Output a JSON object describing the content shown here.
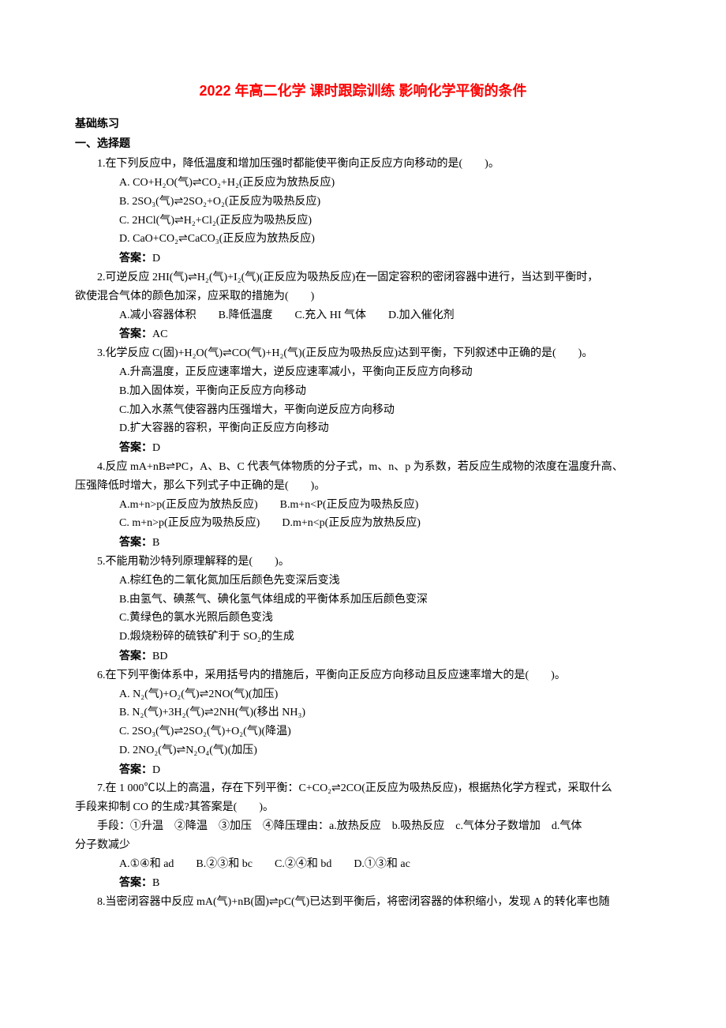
{
  "title": "2022 年高二化学 课时跟踪训练 影响化学平衡的条件",
  "section1": "基础练习",
  "section2": "一、选择题",
  "q1": {
    "stem": "1.在下列反应中，降低温度和增加压强时都能使平衡向正反应方向移动的是(　　)。",
    "A": "A. CO+H₂O(气)⇌CO₂+H₂(正反应为放热反应)",
    "B": "B. 2SO₃(气)⇌2SO₂+O₂(正反应为吸热反应)",
    "C": "C. 2HCl(气)⇌H₂+Cl₂(正反应为吸热反应)",
    "D": "D. CaO+CO₂⇌CaCO₃(正反应为放热反应)",
    "ans": "D"
  },
  "q2": {
    "stem1": "2.可逆反应 2HI(气)⇌H₂(气)+I₂(气)(正反应为吸热反应)在一固定容积的密闭容器中进行，当达到平衡时，",
    "stem2": "欲使混合气体的颜色加深，应采取的措施为(　　)",
    "opts": "A.减小容器体积　　B.降低温度　　C.充入 HI 气体　　D.加入催化剂",
    "ans": "AC"
  },
  "q3": {
    "stem": "3.化学反应 C(固)+H₂O(气)⇌CO(气)+H₂(气)(正反应为吸热反应)达到平衡，下列叙述中正确的是(　　)。",
    "A": "A.升高温度，正反应速率增大，逆反应速率减小，平衡向正反应方向移动",
    "B": "B.加入固体炭，平衡向正反应方向移动",
    "C": "C.加入水蒸气使容器内压强增大，平衡向逆反应方向移动",
    "D": "D.扩大容器的容积，平衡向正反应方向移动",
    "ans": "D"
  },
  "q4": {
    "stem1": "4.反应 mA+nB⇌PC，A、B、C 代表气体物质的分子式，m、n、p 为系数，若反应生成物的浓度在温度升高、",
    "stem2": "压强降低时增大，那么下列式子中正确的是(　　)。",
    "A": "A.m+n>p(正反应为放热反应)　　B.m+n<P(正反应为吸热反应)",
    "C": "C. m+n>p(正反应为吸热反应)　　D.m+n<p(正反应为放热反应)",
    "ans": "B"
  },
  "q5": {
    "stem": "5.不能用勒沙特列原理解释的是(　　)。",
    "A": "A.棕红色的二氧化氮加压后颜色先变深后变浅",
    "B": "B.由氢气、碘蒸气、碘化氢气体组成的平衡体系加压后颜色变深",
    "C": "C.黄绿色的氯水光照后颜色变浅",
    "D": "D.煅烧粉碎的硫铁矿利于 SO₂的生成",
    "ans": "BD"
  },
  "q6": {
    "stem": "6.在下列平衡体系中，采用括号内的措施后，平衡向正反应方向移动且反应速率增大的是(　　)。",
    "A": "A. N₂(气)+O₂(气)⇌2NO(气)(加压)",
    "B": "B. N₂(气)+3H₂(气)⇌2NH(气)(移出 NH₃)",
    "C": "C. 2SO₃(气)⇌2SO₂(气)+O₂(气)(降温)",
    "D": "D. 2NO₂(气)⇌N₂O₄(气)(加压)",
    "ans": "D"
  },
  "q7": {
    "stem1": "7.在 1 000℃以上的高温，存在下列平衡：C+CO₂⇌2CO(正反应为吸热反应)，根据热化学方程式，采取什么",
    "stem2": "手段来抑制 CO 的生成?其答案是(　　)。",
    "means1": "手段：①升温　②降温　③加压　④降压理由：a.放热反应　b.吸热反应　c.气体分子数增加　d.气体",
    "means2": "分子数减少",
    "opts": "A.①④和 ad　　B.②③和 bc　　C.②④和 bd　　D.①③和 ac",
    "ans": "B"
  },
  "q8": {
    "stem": "8.当密闭容器中反应 mA(气)+nB(固)⇌pC(气)已达到平衡后，将密闭容器的体积缩小，发现 A 的转化率也随"
  },
  "answer_label": "答案："
}
